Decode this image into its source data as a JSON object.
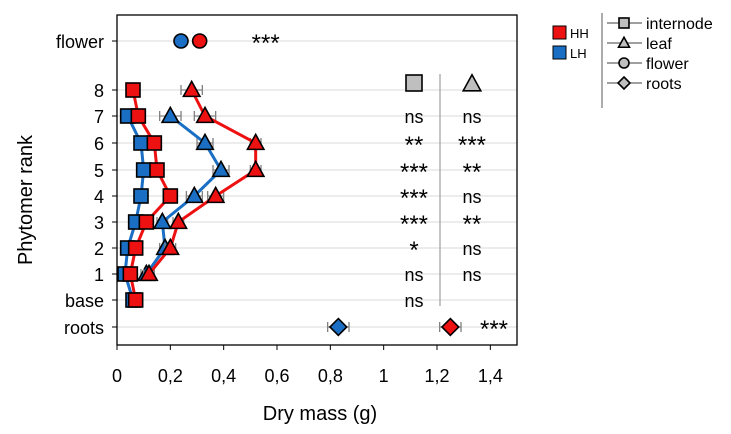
{
  "chart_data": {
    "type": "line",
    "xlabel": "Dry mass (g)",
    "ylabel": "Phytomer rank",
    "xlim": [
      0,
      1.5
    ],
    "x_ticks": [
      "0",
      "0,2",
      "0,4",
      "0,6",
      "0,8",
      "1",
      "1,2",
      "1,4"
    ],
    "x_tick_values": [
      0,
      0.2,
      0.4,
      0.6,
      0.8,
      1.0,
      1.2,
      1.4
    ],
    "categories": [
      "flower",
      "8",
      "7",
      "6",
      "5",
      "4",
      "3",
      "2",
      "1",
      "base",
      "roots"
    ],
    "grid": "horizontal",
    "series": [
      {
        "name": "HH",
        "organ": "internode",
        "color": "#ee1111",
        "marker": "square",
        "values": [
          null,
          0.06,
          0.08,
          0.14,
          0.15,
          0.2,
          0.11,
          0.07,
          0.05,
          0.07,
          null
        ],
        "errors": [
          null,
          0.01,
          0.01,
          0.01,
          0.01,
          0.02,
          0.01,
          0.01,
          0.01,
          0.01,
          null
        ]
      },
      {
        "name": "HH",
        "organ": "leaf",
        "color": "#ee1111",
        "marker": "triangle",
        "values": [
          null,
          0.28,
          0.33,
          0.52,
          0.52,
          0.37,
          0.23,
          0.2,
          0.12,
          null,
          null
        ],
        "errors": [
          null,
          0.04,
          0.04,
          0.02,
          0.02,
          0.03,
          0.02,
          0.02,
          0.02,
          null,
          null
        ]
      },
      {
        "name": "HH",
        "organ": "flower",
        "color": "#ee1111",
        "marker": "circle",
        "values": [
          0.31,
          null,
          null,
          null,
          null,
          null,
          null,
          null,
          null,
          null,
          null
        ],
        "errors": [
          0.01,
          null,
          null,
          null,
          null,
          null,
          null,
          null,
          null,
          null,
          null
        ]
      },
      {
        "name": "HH",
        "organ": "roots",
        "color": "#ee1111",
        "marker": "diamond",
        "values": [
          null,
          null,
          null,
          null,
          null,
          null,
          null,
          null,
          null,
          null,
          1.25
        ],
        "errors": [
          null,
          null,
          null,
          null,
          null,
          null,
          null,
          null,
          null,
          null,
          0.04
        ]
      },
      {
        "name": "LH",
        "organ": "internode",
        "color": "#1a6fc4",
        "marker": "square",
        "values": [
          null,
          null,
          0.04,
          0.09,
          0.1,
          0.09,
          0.07,
          0.04,
          0.03,
          0.06,
          null
        ],
        "errors": [
          null,
          null,
          0.01,
          0.01,
          0.01,
          0.01,
          0.01,
          0.01,
          0.01,
          0.01,
          null
        ]
      },
      {
        "name": "LH",
        "organ": "leaf",
        "color": "#1a6fc4",
        "marker": "triangle",
        "values": [
          null,
          null,
          0.2,
          0.33,
          0.39,
          0.29,
          0.17,
          0.18,
          0.11,
          null,
          null
        ],
        "errors": [
          null,
          null,
          0.04,
          0.03,
          0.03,
          0.03,
          0.02,
          0.02,
          0.02,
          null,
          null
        ]
      },
      {
        "name": "LH",
        "organ": "flower",
        "color": "#1a6fc4",
        "marker": "circle",
        "values": [
          0.24,
          null,
          null,
          null,
          null,
          null,
          null,
          null,
          null,
          null,
          null
        ],
        "errors": [
          0.01,
          null,
          null,
          null,
          null,
          null,
          null,
          null,
          null,
          null,
          null
        ]
      },
      {
        "name": "LH",
        "organ": "roots",
        "color": "#1a6fc4",
        "marker": "diamond",
        "values": [
          null,
          null,
          null,
          null,
          null,
          null,
          null,
          null,
          null,
          null,
          0.83
        ],
        "errors": [
          null,
          null,
          null,
          null,
          null,
          null,
          null,
          null,
          null,
          null,
          0.04
        ]
      }
    ],
    "significance": {
      "internode": [
        "",
        "",
        "ns",
        "**",
        "***",
        "***",
        "***",
        "*",
        "ns",
        "ns",
        ""
      ],
      "leaf": [
        "",
        "",
        "ns",
        "***",
        "**",
        "ns",
        "**",
        "ns",
        "ns",
        "",
        ""
      ],
      "flower": "***",
      "roots": "***"
    },
    "legend": {
      "placement": "right",
      "treatments": [
        {
          "label": "HH",
          "color": "#ee1111"
        },
        {
          "label": "LH",
          "color": "#1a6fc4"
        }
      ],
      "organs": [
        {
          "label": "internode",
          "marker": "square"
        },
        {
          "label": "leaf",
          "marker": "triangle"
        },
        {
          "label": "flower",
          "marker": "circle"
        },
        {
          "label": "roots",
          "marker": "diamond"
        }
      ]
    },
    "column_header_colors": {
      "grey": "#bfbfbf",
      "error_bar": "#808080",
      "grid": "#d9d9d9"
    }
  }
}
